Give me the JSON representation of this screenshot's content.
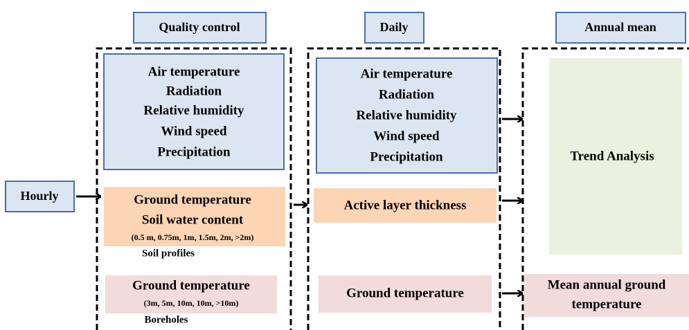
{
  "headers": {
    "input": "Hourly",
    "quality_control": "Quality control",
    "daily": "Daily",
    "annual_mean": "Annual mean"
  },
  "quality_control": {
    "meteorology": [
      "Air temperature",
      "Radiation",
      "Relative humidity",
      "Wind speed",
      "Precipitation"
    ],
    "soil": {
      "lines": [
        "Ground temperature",
        "Soil water content"
      ],
      "depths": "(0.5 m, 0.75m, 1m, 1.5m, 2m, >2m)",
      "source": "Soil profiles"
    },
    "borehole": {
      "title": "Ground temperature",
      "depths": "(3m, 5m, 10m, 10m, >10m)",
      "source": "Boreholes"
    }
  },
  "daily": {
    "meteorology": [
      "Air temperature",
      "Radiation",
      "Relative humidity",
      "Wind speed",
      "Precipitation"
    ],
    "active_layer": "Active layer thickness",
    "ground": "Ground temperature"
  },
  "annual_mean": {
    "trend": "Trend Analysis",
    "ground": [
      "Mean annual ground",
      "temperature"
    ]
  }
}
